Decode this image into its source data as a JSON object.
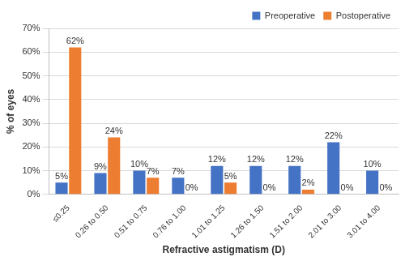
{
  "chart_data": {
    "type": "bar",
    "x_label": "Refractive astigmatism (D)",
    "y_label": "% of eyes",
    "categories": [
      "≤0.25",
      "0.26 to 0.50",
      "0.51 to 0.75",
      "0.76 to 1.00",
      "1.01 to 1.25",
      "1.26 to 1.50",
      "1.51 to 2.00",
      "2.01 to 3.00",
      "3.01 to 4.00"
    ],
    "series": [
      {
        "name": "Preoperative",
        "color": "#4472c4",
        "values": [
          5,
          9,
          10,
          7,
          12,
          12,
          12,
          22,
          10
        ],
        "value_labels": [
          "5%",
          "9%",
          "10%",
          "7%",
          "12%",
          "12%",
          "12%",
          "22%",
          "10%"
        ]
      },
      {
        "name": "Postoperative",
        "color": "#ed7d31",
        "values": [
          62,
          24,
          7,
          0,
          5,
          0,
          2,
          0,
          0
        ],
        "value_labels": [
          "62%",
          "24%",
          "7%",
          "0%",
          "5%",
          "0%",
          "2%",
          "0%",
          "0%"
        ]
      }
    ],
    "ylim": [
      0,
      70
    ],
    "yticks": [
      {
        "value": 0,
        "label": "0%"
      },
      {
        "value": 10,
        "label": "10%"
      },
      {
        "value": 20,
        "label": "20%"
      },
      {
        "value": 30,
        "label": "30%"
      },
      {
        "value": 40,
        "label": "40%"
      },
      {
        "value": 50,
        "label": "50%"
      },
      {
        "value": 60,
        "label": "60%"
      },
      {
        "value": 70,
        "label": "70%"
      }
    ],
    "grid": true,
    "legend": "top-right",
    "data_labels": true
  }
}
